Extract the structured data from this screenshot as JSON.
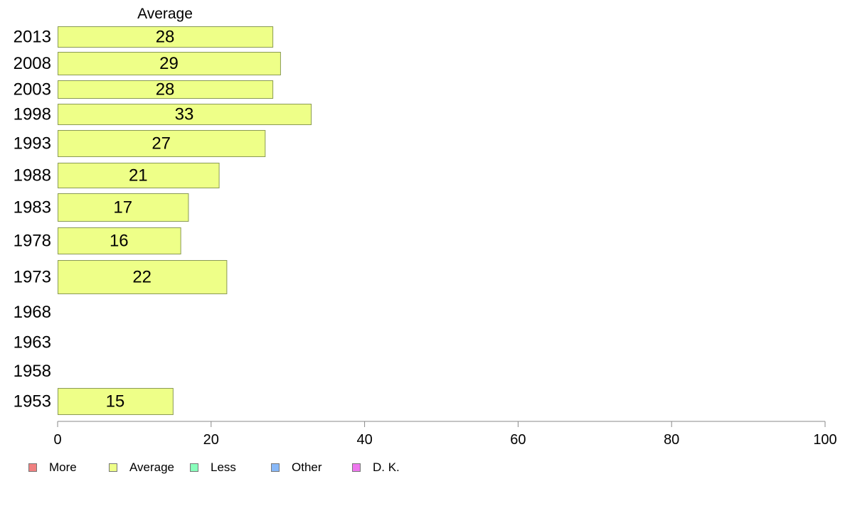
{
  "chart_data": {
    "type": "bar",
    "orientation": "horizontal",
    "series_label": "Average",
    "categories": [
      "2013",
      "2008",
      "2003",
      "1998",
      "1993",
      "1988",
      "1983",
      "1978",
      "1973",
      "1968",
      "1963",
      "1958",
      "1953"
    ],
    "values": [
      28,
      29,
      28,
      33,
      27,
      21,
      17,
      16,
      22,
      null,
      null,
      null,
      15
    ],
    "xlim": [
      0,
      100
    ],
    "x_ticks": [
      0,
      20,
      40,
      60,
      80,
      100
    ],
    "bar_color": "#eeff88",
    "bar_stroke": "#8a9a55",
    "axis_color": "#888888",
    "legend_position": "bottom-left",
    "legend": [
      {
        "label": "More",
        "color": "#f08080"
      },
      {
        "label": "Average",
        "color": "#eeff88"
      },
      {
        "label": "Less",
        "color": "#88ffbb"
      },
      {
        "label": "Other",
        "color": "#88b8f8"
      },
      {
        "label": "D. K.",
        "color": "#ee77ee"
      }
    ]
  }
}
